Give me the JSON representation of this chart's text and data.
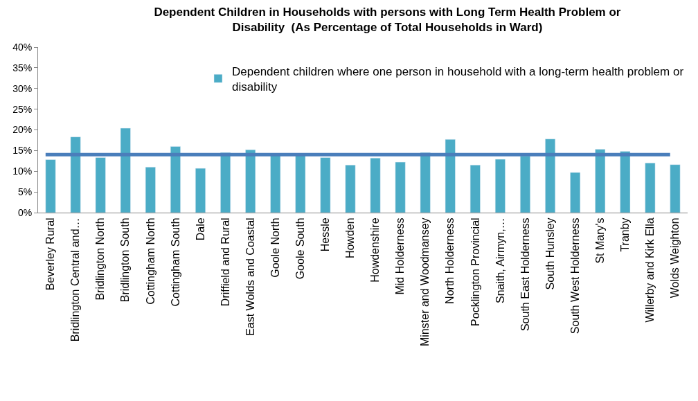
{
  "chart_data": {
    "type": "bar",
    "title": "Dependent Children in Households with persons with Long Term Health Problem or Disability  (As Percentage of Total Households in Ward)",
    "categories": [
      "Beverley Rural",
      "Bridlington Central and…",
      "Bridlington North",
      "Bridlington South",
      "Cottingham North",
      "Cottingham South",
      "Dale",
      "Driffield and Rural",
      "East Wolds and Coastal",
      "Goole North",
      "Goole South",
      "Hessle",
      "Howden",
      "Howdenshire",
      "Mid Holderness",
      "Minster and Woodmansey",
      "North Holderness",
      "Pocklington Provincial",
      "Snaith, Airmyn,…",
      "South East Holderness",
      "South Hunsley",
      "South West Holderness",
      "St Mary's",
      "Tranby",
      "Willerby and Kirk Ella",
      "Wolds Weighton"
    ],
    "series": [
      {
        "name": "Dependent children where one person in household with a long-term health problem or disability",
        "color": "#4bacc6",
        "values": [
          12.8,
          18.3,
          13.3,
          20.4,
          11.0,
          16.0,
          10.7,
          14.5,
          15.2,
          14.0,
          14.0,
          13.3,
          11.5,
          13.2,
          12.2,
          14.5,
          17.7,
          11.5,
          12.9,
          13.7,
          17.8,
          9.7,
          15.3,
          14.8,
          12.0,
          11.6
        ]
      }
    ],
    "ylim": [
      0,
      40
    ],
    "yticks": [
      {
        "value": 0,
        "label": "0%"
      },
      {
        "value": 5,
        "label": "5%"
      },
      {
        "value": 10,
        "label": "10%"
      },
      {
        "value": 15,
        "label": "15%"
      },
      {
        "value": 20,
        "label": "20%"
      },
      {
        "value": 25,
        "label": "25%"
      },
      {
        "value": 30,
        "label": "30%"
      },
      {
        "value": 35,
        "label": "35%"
      },
      {
        "value": 40,
        "label": "40%"
      }
    ],
    "ref_lines": [
      {
        "axis": "y",
        "value": 14,
        "color": "#4a7ebb"
      }
    ],
    "legend": "top right"
  }
}
